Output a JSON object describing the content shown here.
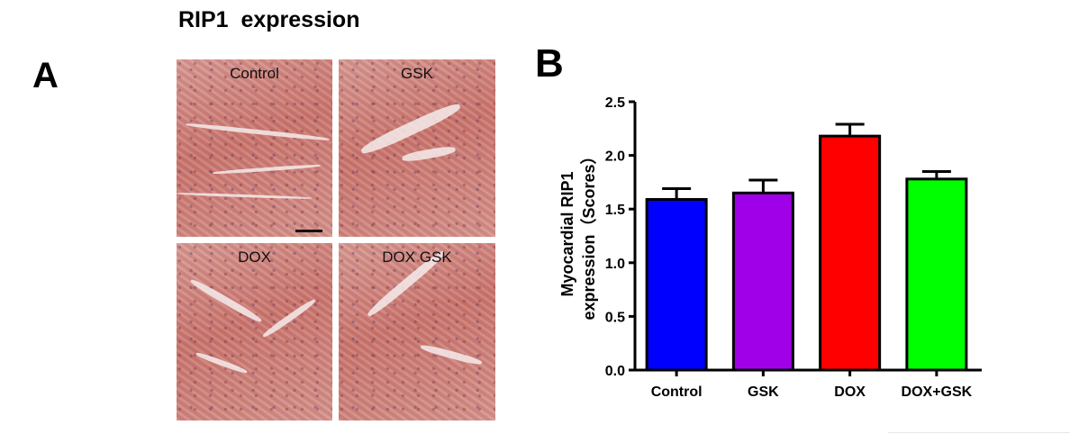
{
  "figure_title": "RIP1  expression",
  "panel_a": {
    "letter": "A",
    "tiles": [
      {
        "label": "Control"
      },
      {
        "label": "GSK"
      },
      {
        "label": "DOX"
      },
      {
        "label": "DOX GSK"
      }
    ]
  },
  "panel_b": {
    "letter": "B"
  },
  "colors": {
    "Control": "#0000ff",
    "GSK": "#a000e8",
    "DOX": "#ff0000",
    "DOX+GSK": "#00ff00"
  },
  "chart_data": {
    "type": "bar",
    "categories": [
      "Control",
      "GSK",
      "DOX",
      "DOX+GSK"
    ],
    "values": [
      1.59,
      1.65,
      2.18,
      1.78
    ],
    "errors": [
      0.1,
      0.12,
      0.11,
      0.07
    ],
    "title": "",
    "xlabel": "",
    "ylabel_lines": [
      "Myocardial RIP1",
      "expression（Scores）"
    ],
    "ylim": [
      0,
      2.5
    ],
    "yticks": [
      "0.0",
      "0.5",
      "1.0",
      "1.5",
      "2.0",
      "2.5"
    ],
    "grid": false,
    "legend": "none"
  }
}
